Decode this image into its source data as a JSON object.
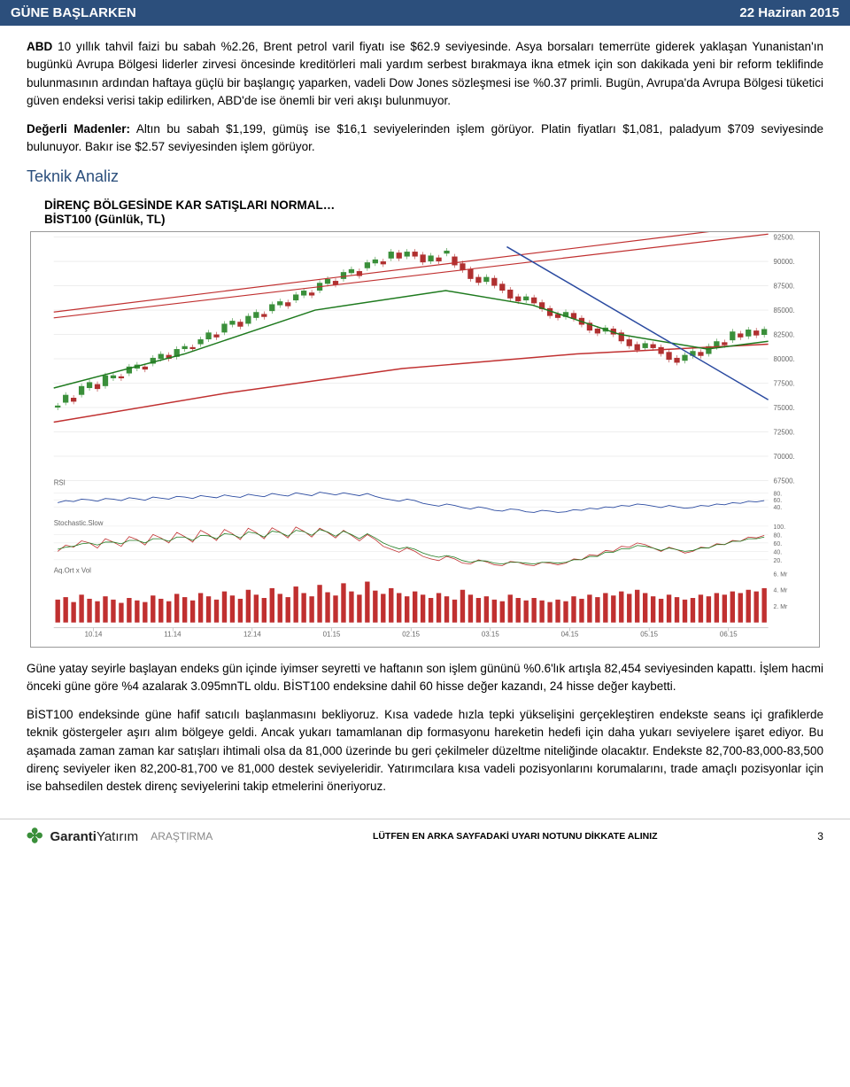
{
  "header": {
    "left": "GÜNE BAŞLARKEN",
    "right": "22 Haziran 2015"
  },
  "p1_lead": "ABD",
  "p1": " 10 yıllık tahvil faizi bu sabah %2.26, Brent petrol varil fiyatı ise $62.9 seviyesinde. Asya borsaları temerrüte giderek yaklaşan Yunanistan'ın bugünkü Avrupa Bölgesi liderler zirvesi öncesinde kreditörleri mali yardım serbest bırakmaya ikna etmek için son dakikada yeni bir reform teklifinde bulunmasının ardından haftaya güçlü bir başlangıç yaparken, vadeli Dow Jones sözleşmesi ise %0.37 primli. Bugün, Avrupa'da Avrupa Bölgesi tüketici güven endeksi verisi takip edilirken, ABD'de ise önemli bir veri akışı bulunmuyor.",
  "p2_lead": "Değerli Madenler:",
  "p2": " Altın bu sabah $1,199, gümüş ise $16,1 seviyelerinden işlem görüyor. Platin fiyatları $1,081, paladyum $709 seviyesinde bulunuyor. Bakır ise $2.57 seviyesinden işlem görüyor.",
  "section": "Teknik Analiz",
  "chart": {
    "title": "DİRENÇ BÖLGESİNDE KAR SATIŞLARI NORMAL…",
    "subtitle": "BİST100 (Günlük, TL)",
    "y_ticks": [
      "92500.",
      "90000.",
      "87500.",
      "85000.",
      "82500.",
      "80000.",
      "77500.",
      "75000.",
      "72500.",
      "70000.",
      "67500."
    ],
    "months": [
      "10.14",
      "11.14",
      "12.14",
      "01.15",
      "02.15",
      "03.15",
      "04.15",
      "05.15",
      "06.15"
    ],
    "rsi_label": "RSI",
    "rsi_ticks": [
      "80.",
      "60.",
      "40."
    ],
    "stoch_label": "Stochastic.Slow",
    "stoch_ticks": [
      "100.",
      "80.",
      "60.",
      "40.",
      "20."
    ],
    "vol_label": "Aq.Ort x Vol",
    "vol_ticks": [
      "6. Mr",
      "4. Mr",
      "2. Mr"
    ],
    "colors": {
      "bg": "#ffffff",
      "grid": "#dddddd",
      "axis": "#999999",
      "tick": "#666666",
      "cs_up": "#3a8f3a",
      "cs_dn": "#b03030",
      "res_red": "#c03030",
      "ma_long": "#c03030",
      "ma_mid": "#1e7a1e",
      "sup_blue": "#2a4aa0",
      "rsi": "#2a4aa0",
      "stoch1": "#c03030",
      "stoch2": "#1e7a1e",
      "vol": "#c03030"
    },
    "resistance_upper": [
      [
        0,
        84800
      ],
      [
        820,
        93800
      ]
    ],
    "resistance_lower": [
      [
        0,
        84200
      ],
      [
        820,
        92800
      ]
    ],
    "ma_long": [
      [
        0,
        73500
      ],
      [
        200,
        76500
      ],
      [
        400,
        79000
      ],
      [
        600,
        80500
      ],
      [
        820,
        81500
      ]
    ],
    "ma_mid": [
      [
        0,
        77000
      ],
      [
        150,
        80500
      ],
      [
        300,
        85000
      ],
      [
        450,
        87000
      ],
      [
        550,
        85500
      ],
      [
        650,
        82500
      ],
      [
        750,
        81000
      ],
      [
        820,
        81800
      ]
    ],
    "support": [
      [
        520,
        91500
      ],
      [
        820,
        75800
      ]
    ],
    "candles": [
      [
        75000,
        200
      ],
      [
        75500,
        800
      ],
      [
        76000,
        -400
      ],
      [
        76300,
        900
      ],
      [
        77000,
        600
      ],
      [
        77400,
        -500
      ],
      [
        77200,
        1100
      ],
      [
        78000,
        300
      ],
      [
        78200,
        -200
      ],
      [
        78500,
        700
      ],
      [
        79000,
        400
      ],
      [
        79200,
        -300
      ],
      [
        79500,
        600
      ],
      [
        80000,
        500
      ],
      [
        80400,
        -400
      ],
      [
        80200,
        800
      ],
      [
        81000,
        300
      ],
      [
        81200,
        -200
      ],
      [
        81500,
        500
      ],
      [
        82000,
        700
      ],
      [
        82500,
        -300
      ],
      [
        82700,
        900
      ],
      [
        83500,
        400
      ],
      [
        83800,
        -500
      ],
      [
        83600,
        800
      ],
      [
        84200,
        600
      ],
      [
        84600,
        -300
      ],
      [
        84900,
        700
      ],
      [
        85500,
        400
      ],
      [
        85800,
        -400
      ],
      [
        86000,
        600
      ],
      [
        86500,
        500
      ],
      [
        86800,
        -300
      ],
      [
        87000,
        800
      ],
      [
        87700,
        500
      ],
      [
        88000,
        -400
      ],
      [
        88200,
        700
      ],
      [
        88800,
        400
      ],
      [
        89000,
        -500
      ],
      [
        89300,
        600
      ],
      [
        89800,
        400
      ],
      [
        90000,
        -300
      ],
      [
        90300,
        700
      ],
      [
        90900,
        -600
      ],
      [
        90500,
        500
      ],
      [
        91000,
        -500
      ],
      [
        90700,
        -800
      ],
      [
        90000,
        600
      ],
      [
        90400,
        -400
      ],
      [
        90800,
        300
      ],
      [
        90500,
        -900
      ],
      [
        89800,
        -700
      ],
      [
        89200,
        -1000
      ],
      [
        88400,
        -600
      ],
      [
        87900,
        500
      ],
      [
        88300,
        -800
      ],
      [
        87700,
        -700
      ],
      [
        87100,
        -900
      ],
      [
        86400,
        -500
      ],
      [
        86000,
        400
      ],
      [
        86300,
        -600
      ],
      [
        85800,
        -700
      ],
      [
        85200,
        -800
      ],
      [
        84600,
        -400
      ],
      [
        84300,
        500
      ],
      [
        84700,
        -600
      ],
      [
        84200,
        -700
      ],
      [
        83700,
        -800
      ],
      [
        83100,
        -500
      ],
      [
        82800,
        400
      ],
      [
        83100,
        -600
      ],
      [
        82700,
        -900
      ],
      [
        82000,
        -700
      ],
      [
        81500,
        -600
      ],
      [
        81100,
        500
      ],
      [
        81500,
        -400
      ],
      [
        81200,
        -700
      ],
      [
        80700,
        -800
      ],
      [
        80100,
        -500
      ],
      [
        79800,
        600
      ],
      [
        80300,
        500
      ],
      [
        80700,
        -400
      ],
      [
        80500,
        800
      ],
      [
        81200,
        600
      ],
      [
        81700,
        -300
      ],
      [
        81900,
        900
      ],
      [
        82600,
        -400
      ],
      [
        82300,
        700
      ],
      [
        82900,
        -500
      ],
      [
        82454,
        600
      ]
    ],
    "rsi_series": [
      52,
      58,
      55,
      62,
      60,
      56,
      64,
      62,
      58,
      66,
      63,
      59,
      68,
      65,
      62,
      70,
      68,
      64,
      72,
      69,
      66,
      74,
      70,
      67,
      76,
      72,
      69,
      78,
      74,
      71,
      80,
      76,
      72,
      82,
      78,
      74,
      80,
      76,
      72,
      78,
      70,
      64,
      60,
      56,
      62,
      58,
      50,
      46,
      42,
      48,
      44,
      38,
      34,
      40,
      36,
      30,
      28,
      34,
      32,
      26,
      24,
      30,
      28,
      24,
      26,
      32,
      30,
      36,
      34,
      40,
      38,
      44,
      42,
      48,
      46,
      42,
      38,
      44,
      40,
      36,
      38,
      44,
      42,
      48,
      46,
      52,
      50,
      56,
      54,
      58
    ],
    "stoch1": [
      40,
      55,
      50,
      65,
      60,
      48,
      70,
      62,
      52,
      75,
      68,
      55,
      80,
      72,
      60,
      85,
      75,
      62,
      90,
      80,
      66,
      92,
      82,
      68,
      95,
      85,
      70,
      96,
      86,
      72,
      98,
      88,
      74,
      95,
      85,
      72,
      90,
      78,
      65,
      80,
      68,
      52,
      45,
      38,
      48,
      40,
      28,
      22,
      18,
      28,
      22,
      12,
      10,
      20,
      15,
      8,
      6,
      16,
      14,
      8,
      6,
      14,
      12,
      8,
      12,
      22,
      20,
      32,
      30,
      42,
      40,
      52,
      50,
      60,
      56,
      48,
      40,
      50,
      44,
      36,
      40,
      50,
      48,
      58,
      56,
      66,
      64,
      74,
      72,
      78
    ],
    "stoch2": [
      45,
      50,
      52,
      58,
      60,
      55,
      62,
      62,
      58,
      66,
      66,
      60,
      70,
      70,
      64,
      74,
      74,
      66,
      78,
      77,
      70,
      82,
      80,
      72,
      86,
      83,
      74,
      88,
      85,
      76,
      90,
      87,
      78,
      92,
      86,
      76,
      88,
      80,
      70,
      82,
      72,
      60,
      52,
      46,
      50,
      45,
      36,
      30,
      26,
      30,
      26,
      18,
      14,
      18,
      17,
      12,
      10,
      14,
      14,
      12,
      10,
      14,
      14,
      12,
      14,
      20,
      20,
      28,
      28,
      38,
      38,
      46,
      46,
      54,
      52,
      48,
      42,
      48,
      44,
      40,
      42,
      48,
      48,
      56,
      56,
      64,
      64,
      70,
      70,
      74
    ],
    "volumes": [
      2.8,
      3.1,
      2.5,
      3.4,
      2.9,
      2.6,
      3.2,
      2.8,
      2.4,
      3.0,
      2.7,
      2.5,
      3.3,
      2.9,
      2.6,
      3.5,
      3.1,
      2.7,
      3.6,
      3.2,
      2.8,
      3.8,
      3.3,
      2.9,
      4.0,
      3.4,
      3.0,
      4.2,
      3.5,
      3.1,
      4.4,
      3.6,
      3.2,
      4.6,
      3.7,
      3.3,
      4.8,
      3.8,
      3.4,
      5.0,
      3.9,
      3.5,
      4.2,
      3.6,
      3.2,
      3.8,
      3.4,
      3.0,
      3.6,
      3.2,
      2.8,
      4.0,
      3.4,
      3.0,
      3.2,
      2.8,
      2.6,
      3.4,
      3.0,
      2.7,
      3.0,
      2.7,
      2.5,
      2.8,
      2.6,
      3.2,
      2.9,
      3.4,
      3.1,
      3.6,
      3.3,
      3.8,
      3.5,
      4.0,
      3.6,
      3.2,
      2.9,
      3.4,
      3.1,
      2.8,
      3.0,
      3.4,
      3.2,
      3.6,
      3.4,
      3.8,
      3.6,
      4.0,
      3.8,
      4.2
    ]
  },
  "p3": "Güne yatay seyirle başlayan endeks gün içinde iyimser seyretti ve haftanın son işlem gününü %0.6'lık artışla 82,454 seviyesinden kapattı. İşlem hacmi önceki güne göre %4 azalarak 3.095mnTL oldu. BİST100 endeksine dahil 60 hisse değer kazandı, 24 hisse değer kaybetti.",
  "p4": "BİST100 endeksinde güne hafif satıcılı  başlanmasını bekliyoruz. Kısa vadede hızla tepki yükselişini gerçekleştiren endekste seans içi grafiklerde teknik göstergeler aşırı alım bölgeye geldi. Ancak yukarı tamamlanan dip formasyonu hareketin hedefi için daha yukarı seviyelere işaret ediyor.  Bu aşamada zaman zaman kar satışları ihtimali olsa da 81,000 üzerinde bu geri çekilmeler düzeltme niteliğinde olacaktır. Endekste 82,700-83,000-83,500 direnç seviyeler iken 82,200-81,700 ve 81,000 destek seviyeleridir. Yatırımcılara kısa vadeli pozisyonlarını korumalarını, trade amaçlı pozisyonlar için ise bahsedilen destek direnç seviyelerini takip etmelerini öneriyoruz.",
  "footer": {
    "logo_brand": "Garanti",
    "logo_brand2": "Yatırım",
    "logo_sub": "ARAŞTIRMA",
    "warn": "LÜTFEN EN ARKA SAYFADAKİ UYARI NOTUNU DİKKATE ALINIZ",
    "page": "3"
  }
}
